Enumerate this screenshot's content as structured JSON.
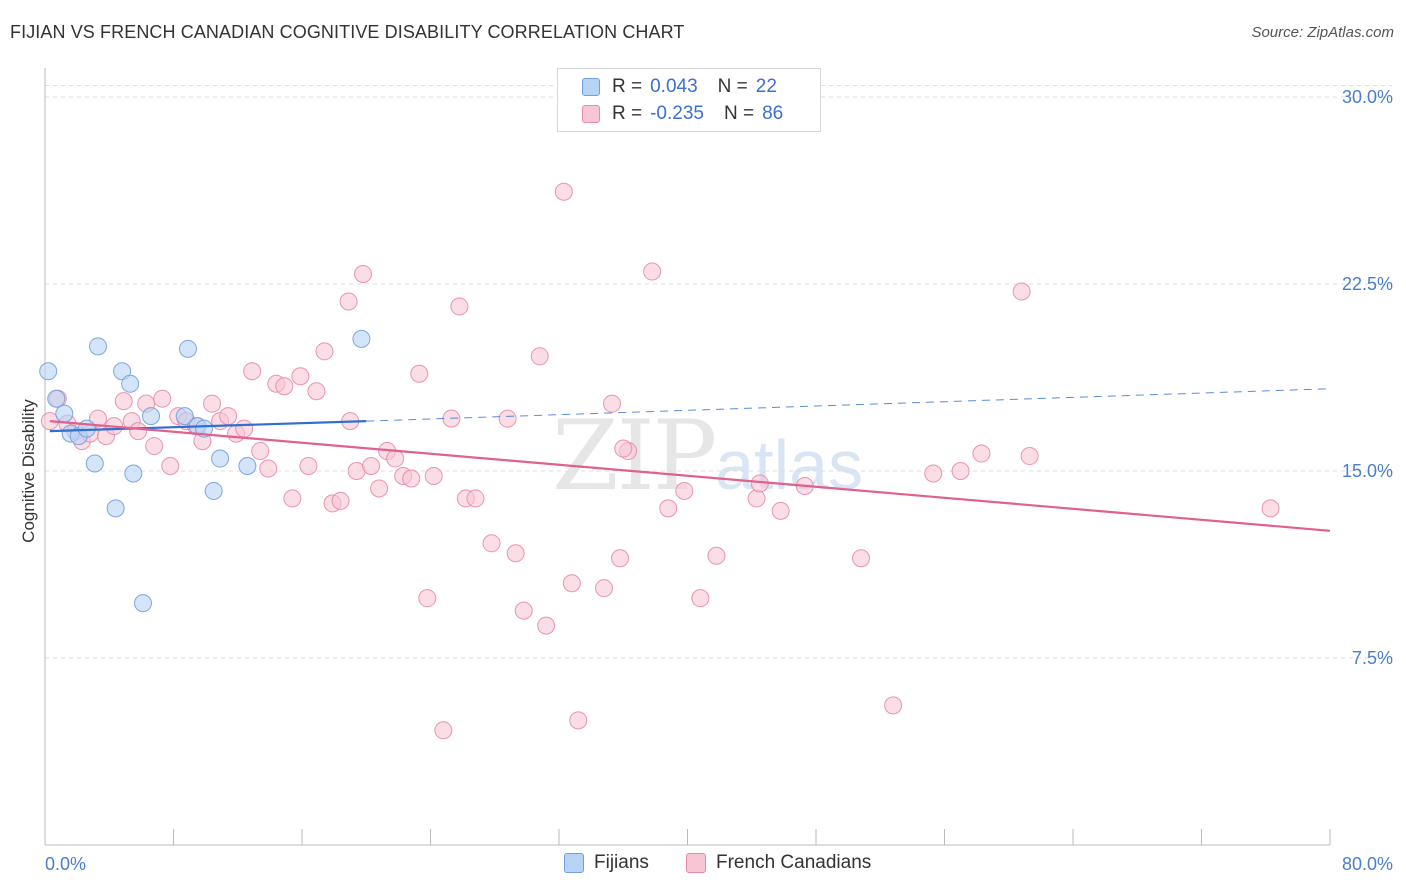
{
  "title": "FIJIAN VS FRENCH CANADIAN COGNITIVE DISABILITY CORRELATION CHART",
  "source": "Source: ZipAtlas.com",
  "watermark": {
    "zip": "ZIP",
    "atlas": "atlas"
  },
  "legend": {
    "rows": [
      {
        "r_label": "R =",
        "r_value": "0.043",
        "n_label": "N =",
        "n_value": "22"
      },
      {
        "r_label": "R =",
        "r_value": "-0.235",
        "n_label": "N =",
        "n_value": "86"
      }
    ]
  },
  "bottom_legend": {
    "fijians": "Fijians",
    "french_canadians": "French Canadians"
  },
  "colors": {
    "fijians_fill": "#b8d4f5",
    "fijians_stroke": "#6f9fe0",
    "fijians_line": "#2f6fd0",
    "french_fill": "#f7c6d4",
    "french_stroke": "#e88aa8",
    "french_line": "#e0608f",
    "tick_label": "#4a7ec9",
    "grid": "#dddddd"
  },
  "chart_data": {
    "type": "scatter",
    "title": "FIJIAN VS FRENCH CANADIAN COGNITIVE DISABILITY CORRELATION CHART",
    "xlabel": "",
    "ylabel": "Cognitive Disability",
    "xlim": [
      0,
      80
    ],
    "ylim": [
      0,
      30.5
    ],
    "x_tick_labels": [
      "0.0%",
      "80.0%"
    ],
    "y_ticks": [
      7.5,
      15.0,
      22.5,
      30.0
    ],
    "y_tick_labels": [
      "7.5%",
      "15.0%",
      "22.5%",
      "30.0%"
    ],
    "series": [
      {
        "name": "Fijians",
        "r": 0.043,
        "n": 22,
        "trend": {
          "x": [
            0.3,
            20.0
          ],
          "y": [
            16.6,
            17.0
          ],
          "dashed_extension_to": [
            80.0,
            18.3
          ]
        },
        "points": [
          {
            "x": 0.2,
            "y": 19.0
          },
          {
            "x": 0.7,
            "y": 17.9
          },
          {
            "x": 1.2,
            "y": 17.3
          },
          {
            "x": 1.6,
            "y": 16.5
          },
          {
            "x": 2.1,
            "y": 16.4
          },
          {
            "x": 2.6,
            "y": 16.7
          },
          {
            "x": 3.1,
            "y": 15.3
          },
          {
            "x": 3.3,
            "y": 20.0
          },
          {
            "x": 4.4,
            "y": 13.5
          },
          {
            "x": 4.8,
            "y": 19.0
          },
          {
            "x": 5.3,
            "y": 18.5
          },
          {
            "x": 5.5,
            "y": 14.9
          },
          {
            "x": 6.1,
            "y": 9.7
          },
          {
            "x": 6.6,
            "y": 17.2
          },
          {
            "x": 8.7,
            "y": 17.2
          },
          {
            "x": 8.9,
            "y": 19.9
          },
          {
            "x": 9.5,
            "y": 16.8
          },
          {
            "x": 9.9,
            "y": 16.7
          },
          {
            "x": 10.5,
            "y": 14.2
          },
          {
            "x": 10.9,
            "y": 15.5
          },
          {
            "x": 12.6,
            "y": 15.2
          },
          {
            "x": 19.7,
            "y": 20.3
          }
        ]
      },
      {
        "name": "French Canadians",
        "r": -0.235,
        "n": 86,
        "trend": {
          "x": [
            0.3,
            80.0
          ],
          "y": [
            17.0,
            12.6
          ]
        },
        "points": [
          {
            "x": 0.3,
            "y": 17.0
          },
          {
            "x": 0.8,
            "y": 17.9
          },
          {
            "x": 1.4,
            "y": 16.9
          },
          {
            "x": 1.9,
            "y": 16.6
          },
          {
            "x": 2.3,
            "y": 16.2
          },
          {
            "x": 2.8,
            "y": 16.5
          },
          {
            "x": 3.3,
            "y": 17.1
          },
          {
            "x": 3.8,
            "y": 16.4
          },
          {
            "x": 4.3,
            "y": 16.8
          },
          {
            "x": 4.9,
            "y": 17.8
          },
          {
            "x": 5.4,
            "y": 17.0
          },
          {
            "x": 5.8,
            "y": 16.6
          },
          {
            "x": 6.3,
            "y": 17.7
          },
          {
            "x": 6.8,
            "y": 16.0
          },
          {
            "x": 7.3,
            "y": 17.9
          },
          {
            "x": 7.8,
            "y": 15.2
          },
          {
            "x": 8.3,
            "y": 17.2
          },
          {
            "x": 8.8,
            "y": 17.0
          },
          {
            "x": 9.4,
            "y": 16.8
          },
          {
            "x": 9.8,
            "y": 16.2
          },
          {
            "x": 10.4,
            "y": 17.7
          },
          {
            "x": 10.9,
            "y": 17.0
          },
          {
            "x": 11.4,
            "y": 17.2
          },
          {
            "x": 11.9,
            "y": 16.5
          },
          {
            "x": 12.4,
            "y": 16.7
          },
          {
            "x": 12.9,
            "y": 19.0
          },
          {
            "x": 13.4,
            "y": 15.8
          },
          {
            "x": 13.9,
            "y": 15.1
          },
          {
            "x": 14.4,
            "y": 18.5
          },
          {
            "x": 14.9,
            "y": 18.4
          },
          {
            "x": 15.4,
            "y": 13.9
          },
          {
            "x": 15.9,
            "y": 18.8
          },
          {
            "x": 16.4,
            "y": 15.2
          },
          {
            "x": 16.9,
            "y": 18.2
          },
          {
            "x": 17.4,
            "y": 19.8
          },
          {
            "x": 17.9,
            "y": 13.7
          },
          {
            "x": 18.4,
            "y": 13.8
          },
          {
            "x": 18.9,
            "y": 21.8
          },
          {
            "x": 19.4,
            "y": 15.0
          },
          {
            "x": 19.8,
            "y": 22.9
          },
          {
            "x": 20.3,
            "y": 15.2
          },
          {
            "x": 20.8,
            "y": 14.3
          },
          {
            "x": 21.3,
            "y": 15.8
          },
          {
            "x": 21.8,
            "y": 15.5
          },
          {
            "x": 22.3,
            "y": 14.8
          },
          {
            "x": 22.8,
            "y": 14.7
          },
          {
            "x": 23.3,
            "y": 18.9
          },
          {
            "x": 23.8,
            "y": 9.9
          },
          {
            "x": 24.2,
            "y": 14.8
          },
          {
            "x": 24.8,
            "y": 4.6
          },
          {
            "x": 25.3,
            "y": 17.1
          },
          {
            "x": 25.8,
            "y": 21.6
          },
          {
            "x": 26.2,
            "y": 13.9
          },
          {
            "x": 26.8,
            "y": 13.9
          },
          {
            "x": 27.8,
            "y": 12.1
          },
          {
            "x": 28.8,
            "y": 17.1
          },
          {
            "x": 29.3,
            "y": 11.7
          },
          {
            "x": 29.8,
            "y": 9.4
          },
          {
            "x": 30.8,
            "y": 19.6
          },
          {
            "x": 31.2,
            "y": 8.8
          },
          {
            "x": 32.3,
            "y": 26.2
          },
          {
            "x": 32.8,
            "y": 10.5
          },
          {
            "x": 33.2,
            "y": 5.0
          },
          {
            "x": 34.8,
            "y": 10.3
          },
          {
            "x": 35.3,
            "y": 17.7
          },
          {
            "x": 35.8,
            "y": 11.5
          },
          {
            "x": 36.3,
            "y": 15.8
          },
          {
            "x": 37.8,
            "y": 23.0
          },
          {
            "x": 38.8,
            "y": 13.5
          },
          {
            "x": 39.8,
            "y": 14.2
          },
          {
            "x": 40.8,
            "y": 9.9
          },
          {
            "x": 41.8,
            "y": 11.6
          },
          {
            "x": 44.3,
            "y": 13.9
          },
          {
            "x": 44.5,
            "y": 14.5
          },
          {
            "x": 45.8,
            "y": 13.4
          },
          {
            "x": 47.3,
            "y": 14.4
          },
          {
            "x": 50.8,
            "y": 11.5
          },
          {
            "x": 52.8,
            "y": 5.6
          },
          {
            "x": 55.3,
            "y": 14.9
          },
          {
            "x": 57.0,
            "y": 15.0
          },
          {
            "x": 58.3,
            "y": 15.7
          },
          {
            "x": 60.8,
            "y": 22.2
          },
          {
            "x": 61.3,
            "y": 15.6
          },
          {
            "x": 76.3,
            "y": 13.5
          },
          {
            "x": 36.0,
            "y": 15.9
          },
          {
            "x": 19.0,
            "y": 17.0
          }
        ]
      }
    ]
  }
}
